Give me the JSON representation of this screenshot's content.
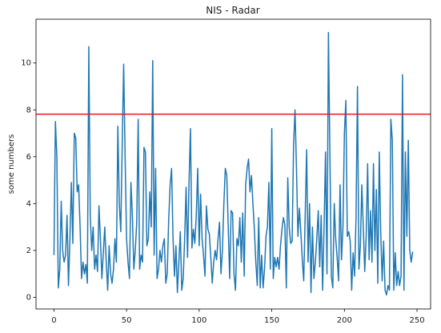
{
  "chart_data": {
    "type": "line",
    "title": "NIS - Radar",
    "ylabel": "some numbers",
    "x": [
      0,
      1,
      2,
      3,
      4,
      5,
      6,
      7,
      8,
      9,
      10,
      11,
      12,
      13,
      14,
      15,
      16,
      17,
      18,
      19,
      20,
      21,
      22,
      23,
      24,
      25,
      26,
      27,
      28,
      29,
      30,
      31,
      32,
      33,
      34,
      35,
      36,
      37,
      38,
      39,
      40,
      41,
      42,
      43,
      44,
      45,
      46,
      47,
      48,
      49,
      50,
      51,
      52,
      53,
      54,
      55,
      56,
      57,
      58,
      59,
      60,
      61,
      62,
      63,
      64,
      65,
      66,
      67,
      68,
      69,
      70,
      71,
      72,
      73,
      74,
      75,
      76,
      77,
      78,
      79,
      80,
      81,
      82,
      83,
      84,
      85,
      86,
      87,
      88,
      89,
      90,
      91,
      92,
      93,
      94,
      95,
      96,
      97,
      98,
      99,
      100,
      101,
      102,
      103,
      104,
      105,
      106,
      107,
      108,
      109,
      110,
      111,
      112,
      113,
      114,
      115,
      116,
      117,
      118,
      119,
      120,
      121,
      122,
      123,
      124,
      125,
      126,
      127,
      128,
      129,
      130,
      131,
      132,
      133,
      134,
      135,
      136,
      137,
      138,
      139,
      140,
      141,
      142,
      143,
      144,
      145,
      146,
      147,
      148,
      149,
      150,
      151,
      152,
      153,
      154,
      155,
      156,
      157,
      158,
      159,
      160,
      161,
      162,
      163,
      164,
      165,
      166,
      167,
      168,
      169,
      170,
      171,
      172,
      173,
      174,
      175,
      176,
      177,
      178,
      179,
      180,
      181,
      182,
      183,
      184,
      185,
      186,
      187,
      188,
      189,
      190,
      191,
      192,
      193,
      194,
      195,
      196,
      197,
      198,
      199,
      200,
      201,
      202,
      203,
      204,
      205,
      206,
      207,
      208,
      209,
      210,
      211,
      212,
      213,
      214,
      215,
      216,
      217,
      218,
      219,
      220,
      221,
      222,
      223,
      224,
      225,
      226,
      227,
      228,
      229,
      230,
      231,
      232,
      233,
      234,
      235,
      236,
      237,
      238,
      239,
      240,
      241,
      242,
      243,
      244,
      245,
      246,
      247
    ],
    "series": [
      {
        "color": "#1f77b4",
        "values": [
          1.8,
          7.5,
          6.0,
          0.4,
          1.2,
          4.1,
          2.0,
          1.5,
          1.8,
          3.5,
          0.5,
          2.5,
          4.9,
          2.3,
          7.0,
          6.8,
          4.5,
          4.8,
          3.0,
          0.8,
          1.5,
          1.0,
          1.4,
          0.6,
          10.7,
          3.5,
          2.0,
          3.0,
          1.2,
          1.8,
          1.1,
          3.9,
          2.5,
          0.8,
          1.9,
          3.0,
          1.5,
          0.3,
          2.2,
          1.0,
          0.6,
          1.2,
          2.5,
          1.5,
          7.3,
          4.0,
          2.8,
          6.5,
          9.95,
          6.0,
          2.5,
          1.5,
          0.8,
          4.9,
          3.5,
          1.2,
          2.0,
          3.2,
          7.6,
          1.2,
          1.8,
          1.5,
          6.4,
          6.2,
          2.2,
          2.5,
          4.5,
          3.0,
          10.1,
          1.8,
          5.5,
          0.8,
          1.2,
          2.0,
          1.5,
          2.2,
          2.5,
          0.6,
          1.0,
          3.3,
          4.8,
          5.5,
          2.5,
          0.9,
          2.2,
          0.2,
          1.5,
          2.8,
          0.3,
          0.8,
          2.5,
          4.7,
          1.7,
          4.9,
          7.2,
          2.1,
          2.9,
          2.3,
          3.5,
          5.5,
          2.2,
          4.4,
          2.5,
          1.8,
          0.9,
          3.9,
          2.9,
          2.7,
          1.7,
          0.6,
          1.5,
          2.0,
          1.6,
          2.5,
          3.2,
          1.0,
          2.0,
          4.0,
          5.5,
          5.2,
          3.0,
          0.8,
          3.7,
          3.6,
          1.0,
          0.3,
          2.5,
          2.2,
          3.4,
          1.5,
          3.6,
          0.9,
          4.8,
          5.5,
          5.9,
          4.5,
          5.2,
          4.0,
          2.9,
          1.5,
          0.5,
          3.4,
          0.4,
          1.8,
          0.4,
          1.2,
          2.6,
          3.0,
          4.9,
          1.2,
          7.2,
          0.8,
          1.7,
          1.3,
          1.7,
          1.2,
          2.2,
          2.9,
          3.4,
          3.1,
          0.4,
          5.1,
          3.0,
          2.3,
          2.4,
          6.5,
          8.0,
          5.5,
          2.6,
          3.8,
          2.8,
          1.6,
          0.7,
          3.5,
          6.3,
          1.5,
          4.0,
          0.2,
          3.0,
          0.8,
          1.5,
          2.5,
          3.7,
          1.3,
          3.5,
          0.3,
          3.0,
          6.2,
          1.0,
          11.3,
          6.2,
          0.9,
          0.4,
          4.0,
          2.5,
          1.7,
          0.7,
          4.8,
          1.6,
          3.0,
          7.0,
          8.4,
          2.6,
          2.8,
          2.4,
          0.3,
          1.9,
          0.9,
          3.4,
          9.0,
          1.2,
          2.2,
          4.8,
          3.0,
          1.1,
          2.6,
          5.7,
          1.6,
          3.7,
          1.5,
          5.7,
          2.0,
          4.6,
          0.6,
          6.2,
          2.8,
          0.7,
          2.4,
          0.3,
          0.1,
          0.5,
          0.3,
          7.6,
          6.7,
          0.3,
          1.9,
          0.5,
          1.1,
          0.5,
          0.9,
          9.5,
          0.3,
          6.2,
          2.6,
          6.7,
          2.0,
          1.5,
          1.95
        ]
      }
    ],
    "threshold": 7.815,
    "threshold_color": "#e41a1c",
    "xlim": [
      -12.35,
      259.35
    ],
    "xticks": [
      0,
      50,
      100,
      150,
      200,
      250
    ],
    "ylim": [
      -0.5,
      11.87
    ],
    "yticks": [
      0,
      2,
      4,
      6,
      8,
      10
    ]
  }
}
